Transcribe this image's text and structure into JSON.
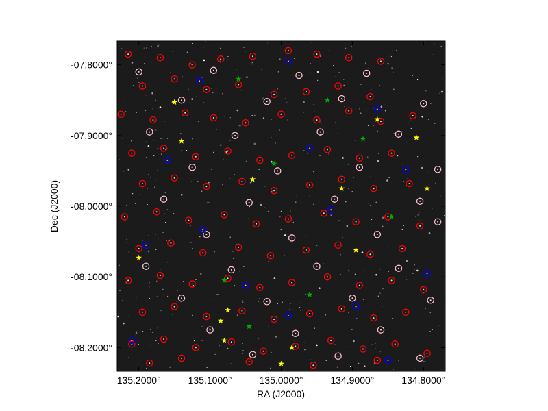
{
  "chart_data": {
    "type": "scatter",
    "title": "",
    "xlabel": "RA (J2000)",
    "ylabel": "Dec (J2000)",
    "xlim": [
      135.2305,
      134.7695
    ],
    "ylim": [
      -8.2335,
      -7.7665
    ],
    "x_ticks": [
      {
        "value": 135.2,
        "label": "135.2000°"
      },
      {
        "value": 135.1,
        "label": "135.1000°"
      },
      {
        "value": 135.0,
        "label": "135.0000°"
      },
      {
        "value": 134.9,
        "label": "134.9000°"
      },
      {
        "value": 134.8,
        "label": "134.8000°"
      }
    ],
    "y_ticks": [
      {
        "value": -7.8,
        "label": "-07.8000°"
      },
      {
        "value": -7.9,
        "label": "-07.9000°"
      },
      {
        "value": -8.0,
        "label": "-08.0000°"
      },
      {
        "value": -8.1,
        "label": "-08.1000°"
      },
      {
        "value": -8.2,
        "label": "-08.2000°"
      }
    ],
    "background": "grayscale star-field image",
    "grid": false,
    "legend": "none",
    "series": [
      {
        "marker": "circle",
        "color": "#ff0000",
        "points": [
          [
            135.215,
            -7.785
          ],
          [
            135.17,
            -7.79
          ],
          [
            135.125,
            -7.8
          ],
          [
            135.085,
            -7.792
          ],
          [
            135.04,
            -7.788
          ],
          [
            134.99,
            -7.78
          ],
          [
            134.95,
            -7.785
          ],
          [
            134.905,
            -7.79
          ],
          [
            134.86,
            -7.795
          ],
          [
            135.195,
            -7.83
          ],
          [
            135.15,
            -7.82
          ],
          [
            135.105,
            -7.835
          ],
          [
            135.06,
            -7.828
          ],
          [
            135.01,
            -7.842
          ],
          [
            134.965,
            -7.838
          ],
          [
            134.92,
            -7.83
          ],
          [
            134.875,
            -7.845
          ],
          [
            135.225,
            -7.87
          ],
          [
            135.18,
            -7.878
          ],
          [
            135.135,
            -7.868
          ],
          [
            135.095,
            -7.875
          ],
          [
            135.05,
            -7.882
          ],
          [
            135.0,
            -7.87
          ],
          [
            134.95,
            -7.878
          ],
          [
            134.905,
            -7.865
          ],
          [
            134.86,
            -7.88
          ],
          [
            134.815,
            -7.872
          ],
          [
            135.21,
            -7.925
          ],
          [
            135.165,
            -7.918
          ],
          [
            135.12,
            -7.93
          ],
          [
            135.075,
            -7.922
          ],
          [
            135.03,
            -7.935
          ],
          [
            134.985,
            -7.928
          ],
          [
            134.935,
            -7.92
          ],
          [
            134.89,
            -7.932
          ],
          [
            134.845,
            -7.925
          ],
          [
            135.195,
            -7.968
          ],
          [
            135.15,
            -7.96
          ],
          [
            135.105,
            -7.972
          ],
          [
            135.055,
            -7.965
          ],
          [
            135.01,
            -7.978
          ],
          [
            134.96,
            -7.97
          ],
          [
            134.915,
            -7.962
          ],
          [
            134.87,
            -7.975
          ],
          [
            134.82,
            -7.968
          ],
          [
            135.22,
            -8.015
          ],
          [
            135.175,
            -8.008
          ],
          [
            135.13,
            -8.02
          ],
          [
            135.08,
            -8.012
          ],
          [
            135.035,
            -8.025
          ],
          [
            134.99,
            -8.018
          ],
          [
            134.94,
            -8.01
          ],
          [
            134.895,
            -8.022
          ],
          [
            134.85,
            -8.015
          ],
          [
            134.805,
            -8.028
          ],
          [
            135.2,
            -8.06
          ],
          [
            135.155,
            -8.052
          ],
          [
            135.11,
            -8.066
          ],
          [
            135.06,
            -8.058
          ],
          [
            135.015,
            -8.07
          ],
          [
            134.965,
            -8.062
          ],
          [
            134.92,
            -8.055
          ],
          [
            134.875,
            -8.068
          ],
          [
            134.83,
            -8.06
          ],
          [
            135.215,
            -8.105
          ],
          [
            135.17,
            -8.098
          ],
          [
            135.125,
            -8.11
          ],
          [
            135.075,
            -8.102
          ],
          [
            135.03,
            -8.115
          ],
          [
            134.985,
            -8.108
          ],
          [
            134.935,
            -8.1
          ],
          [
            134.89,
            -8.112
          ],
          [
            134.845,
            -8.105
          ],
          [
            134.8,
            -8.118
          ],
          [
            135.195,
            -8.15
          ],
          [
            135.15,
            -8.142
          ],
          [
            135.105,
            -8.156
          ],
          [
            135.055,
            -8.148
          ],
          [
            135.01,
            -8.16
          ],
          [
            134.96,
            -8.152
          ],
          [
            134.915,
            -8.145
          ],
          [
            134.87,
            -8.158
          ],
          [
            134.825,
            -8.15
          ],
          [
            135.21,
            -8.195
          ],
          [
            135.165,
            -8.188
          ],
          [
            135.12,
            -8.2
          ],
          [
            135.07,
            -8.192
          ],
          [
            135.025,
            -8.205
          ],
          [
            134.98,
            -8.198
          ],
          [
            134.93,
            -8.19
          ],
          [
            134.885,
            -8.202
          ],
          [
            134.84,
            -8.195
          ],
          [
            134.795,
            -8.208
          ],
          [
            135.185,
            -8.222
          ],
          [
            135.14,
            -8.215
          ],
          [
            135.045,
            -8.22
          ],
          [
            134.955,
            -8.225
          ],
          [
            134.865,
            -8.218
          ]
        ]
      },
      {
        "marker": "circle",
        "color": "#ffc0cb",
        "points": [
          [
            135.2,
            -7.81
          ],
          [
            135.095,
            -7.808
          ],
          [
            134.975,
            -7.815
          ],
          [
            134.88,
            -7.812
          ],
          [
            135.14,
            -7.85
          ],
          [
            135.02,
            -7.852
          ],
          [
            134.915,
            -7.848
          ],
          [
            134.8,
            -7.855
          ],
          [
            135.185,
            -7.895
          ],
          [
            135.065,
            -7.9
          ],
          [
            134.945,
            -7.895
          ],
          [
            134.835,
            -7.898
          ],
          [
            135.125,
            -7.945
          ],
          [
            135.005,
            -7.95
          ],
          [
            134.89,
            -7.945
          ],
          [
            134.78,
            -7.948
          ],
          [
            135.165,
            -7.99
          ],
          [
            135.045,
            -7.995
          ],
          [
            134.925,
            -7.99
          ],
          [
            134.805,
            -7.993
          ],
          [
            135.105,
            -8.04
          ],
          [
            134.985,
            -8.045
          ],
          [
            134.865,
            -8.04
          ],
          [
            134.78,
            -8.022
          ],
          [
            135.19,
            -8.085
          ],
          [
            135.07,
            -8.09
          ],
          [
            134.95,
            -8.085
          ],
          [
            134.835,
            -8.088
          ],
          [
            135.14,
            -8.13
          ],
          [
            135.02,
            -8.135
          ],
          [
            134.9,
            -8.13
          ],
          [
            134.79,
            -8.133
          ],
          [
            135.1,
            -8.175
          ],
          [
            134.98,
            -8.18
          ],
          [
            134.86,
            -8.175
          ],
          [
            135.04,
            -8.21
          ],
          [
            134.92,
            -8.212
          ],
          [
            134.805,
            -8.215
          ]
        ]
      },
      {
        "marker": "circle",
        "color": "#0000ff",
        "points": [
          [
            135.115,
            -7.823
          ],
          [
            134.99,
            -7.795
          ],
          [
            134.865,
            -7.863
          ],
          [
            135.16,
            -7.935
          ],
          [
            134.96,
            -7.918
          ],
          [
            134.825,
            -7.948
          ],
          [
            135.11,
            -8.033
          ],
          [
            134.93,
            -8.005
          ],
          [
            134.795,
            -8.095
          ],
          [
            135.19,
            -8.055
          ],
          [
            135.05,
            -8.112
          ],
          [
            134.895,
            -8.142
          ],
          [
            135.21,
            -8.19
          ],
          [
            134.99,
            -8.155
          ],
          [
            134.85,
            -8.218
          ]
        ]
      },
      {
        "marker": "star",
        "color": "#ffff00",
        "points": [
          [
            135.15,
            -7.853
          ],
          [
            135.14,
            -7.908
          ],
          [
            135.04,
            -7.962
          ],
          [
            134.865,
            -7.877
          ],
          [
            134.81,
            -7.903
          ],
          [
            134.915,
            -7.975
          ],
          [
            134.795,
            -7.975
          ],
          [
            134.895,
            -8.062
          ],
          [
            135.2,
            -8.073
          ],
          [
            135.075,
            -8.147
          ],
          [
            135.085,
            -8.162
          ],
          [
            135.08,
            -8.19
          ],
          [
            134.985,
            -8.2
          ],
          [
            135.0,
            -8.223
          ]
        ]
      },
      {
        "marker": "star",
        "color": "#00aa00",
        "points": [
          [
            135.06,
            -7.82
          ],
          [
            134.935,
            -7.85
          ],
          [
            134.885,
            -7.905
          ],
          [
            135.01,
            -7.94
          ],
          [
            134.845,
            -8.015
          ],
          [
            135.08,
            -8.105
          ],
          [
            134.96,
            -8.125
          ],
          [
            135.045,
            -8.17
          ]
        ]
      }
    ]
  }
}
